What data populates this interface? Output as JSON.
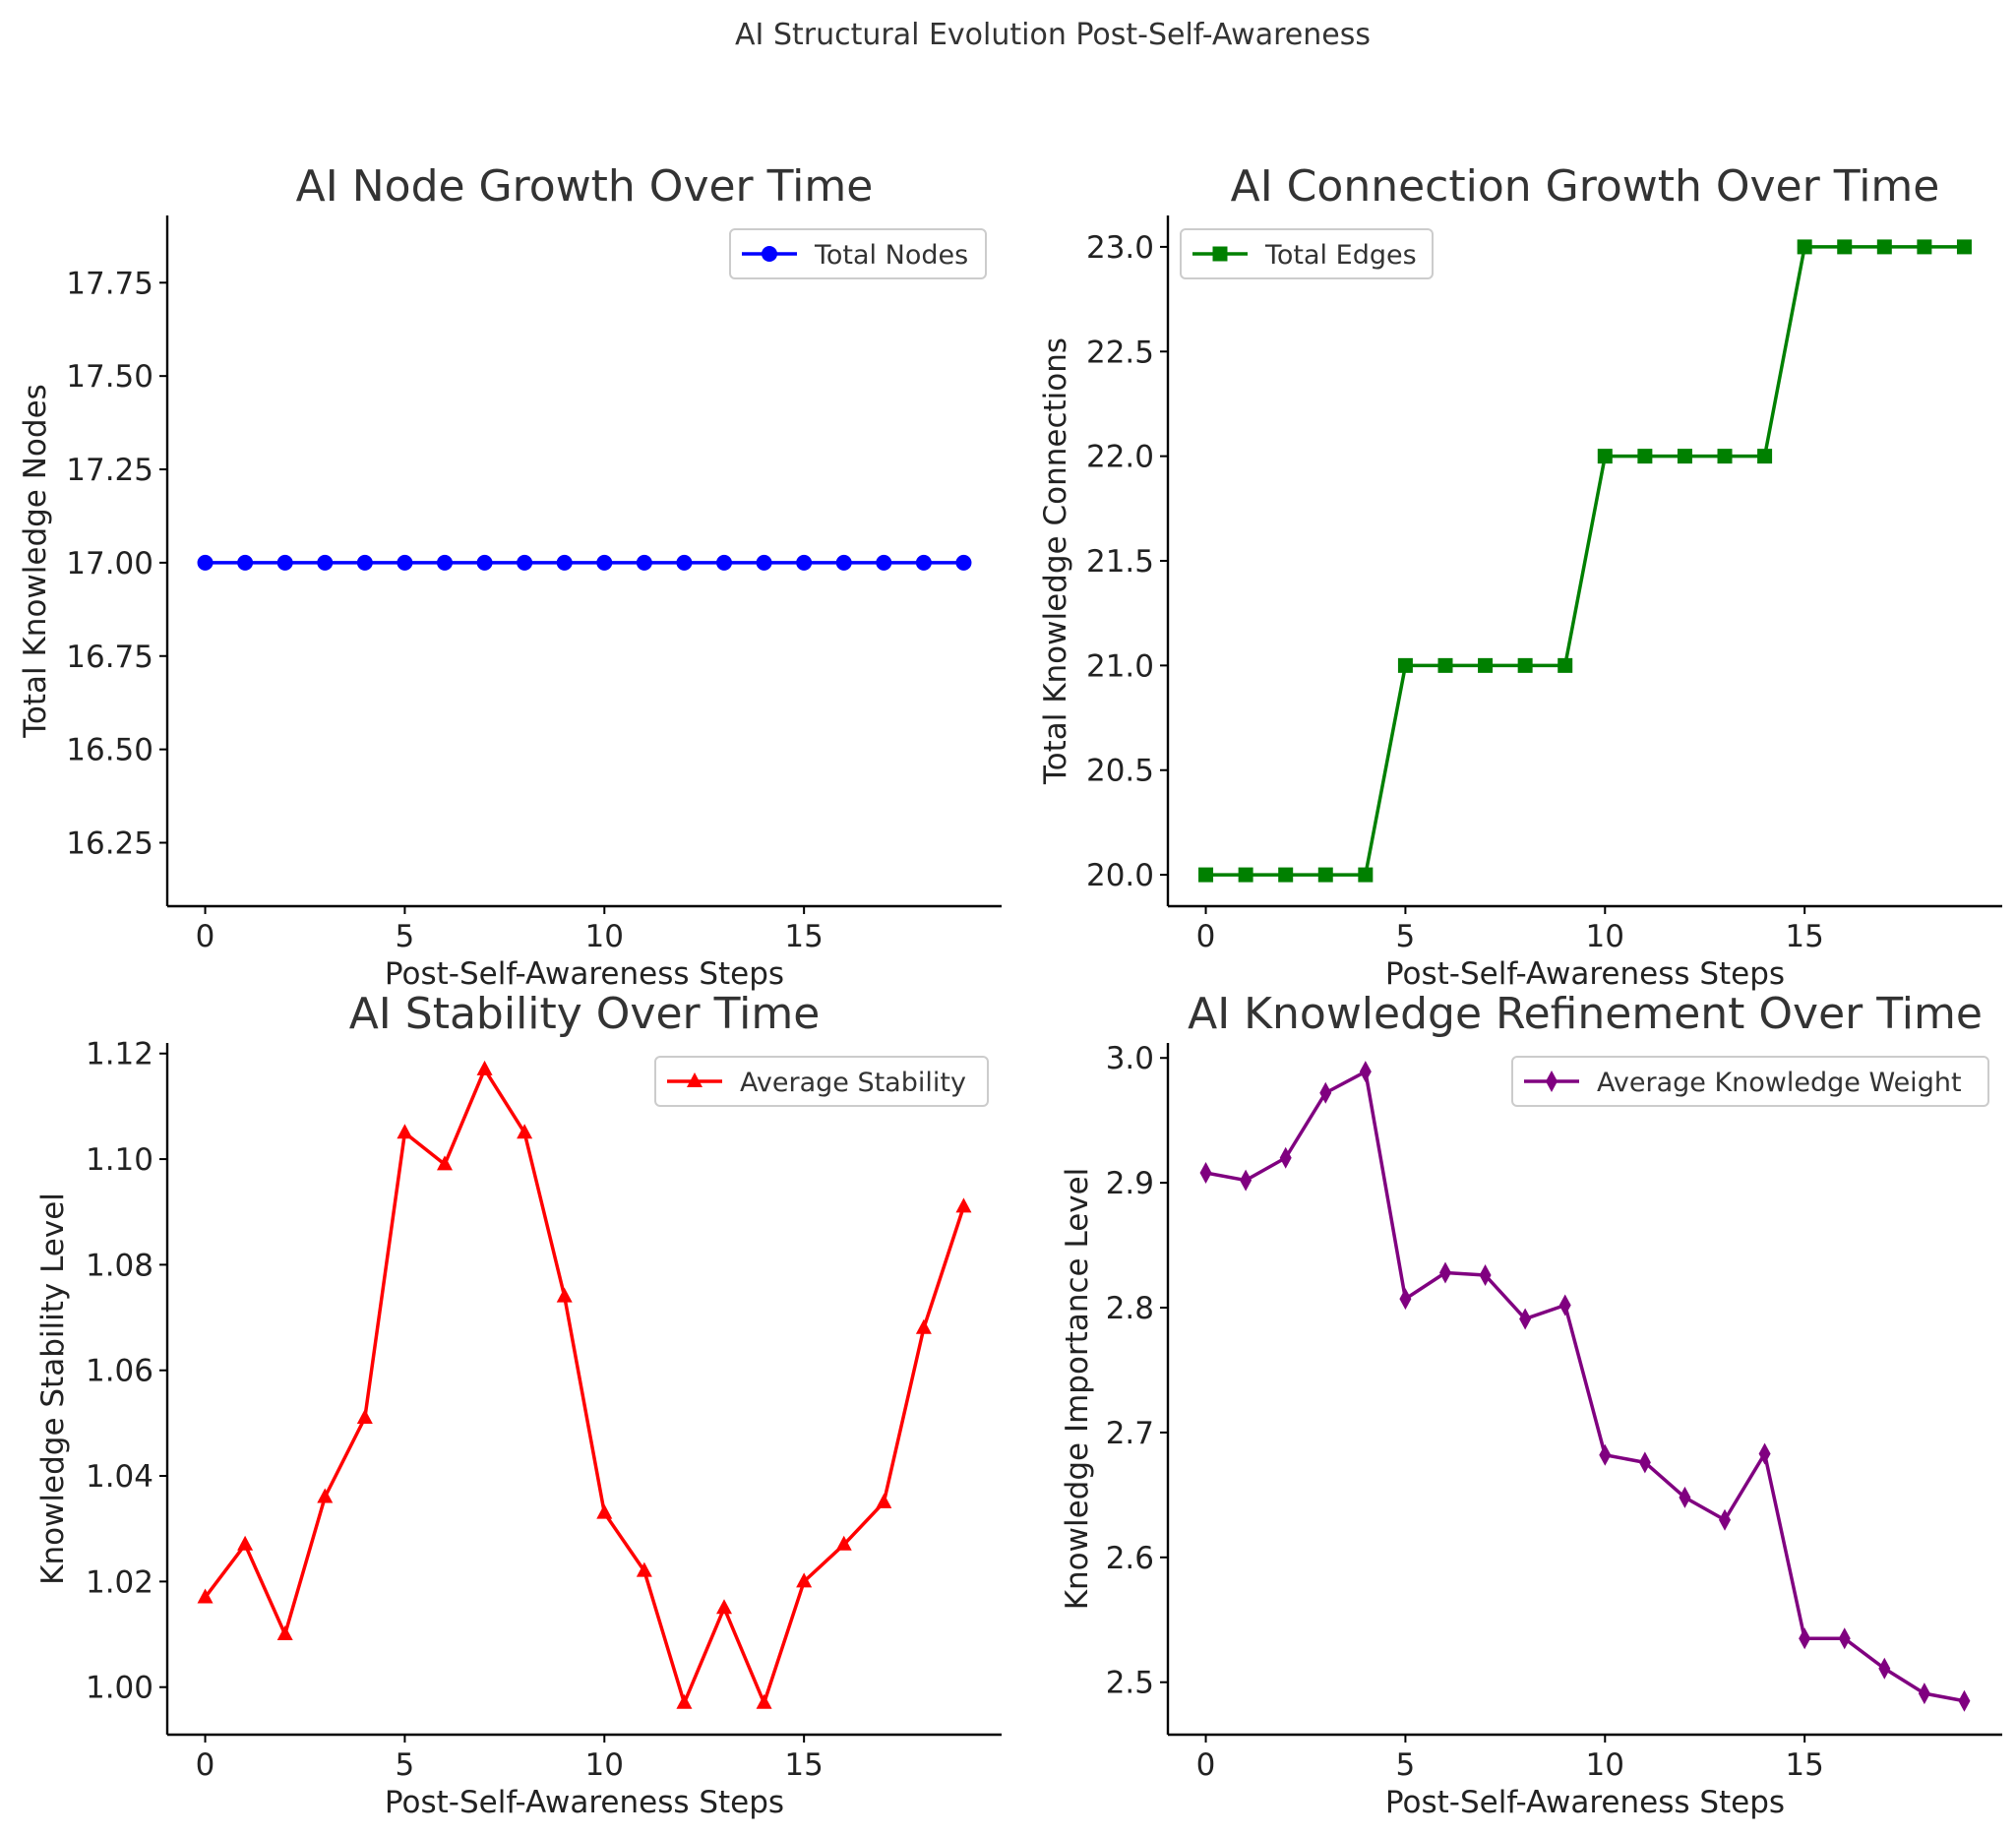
{
  "figure": {
    "suptitle": "AI Structural Evolution Post-Self-Awareness"
  },
  "chart_data": [
    {
      "type": "line",
      "title": "AI Node Growth Over Time",
      "xlabel": "Post-Self-Awareness Steps",
      "ylabel": "Total Knowledge Nodes",
      "xlim": [
        -0.95,
        19.95
      ],
      "ylim": [
        16.08,
        17.93
      ],
      "xticks": [
        0,
        5,
        10,
        15
      ],
      "yticks": [
        16.25,
        16.5,
        16.75,
        17.0,
        17.25,
        17.5,
        17.75
      ],
      "ytick_labels": [
        "16.25",
        "16.50",
        "16.75",
        "17.00",
        "17.25",
        "17.50",
        "17.75"
      ],
      "legend_position": "upper right",
      "series": [
        {
          "name": "Total Nodes",
          "color": "#0000ff",
          "marker": "circle",
          "x": [
            0,
            1,
            2,
            3,
            4,
            5,
            6,
            7,
            8,
            9,
            10,
            11,
            12,
            13,
            14,
            15,
            16,
            17,
            18,
            19
          ],
          "values": [
            17,
            17,
            17,
            17,
            17,
            17,
            17,
            17,
            17,
            17,
            17,
            17,
            17,
            17,
            17,
            17,
            17,
            17,
            17,
            17
          ]
        }
      ]
    },
    {
      "type": "line",
      "title": "AI Connection Growth Over Time",
      "xlabel": "Post-Self-Awareness Steps",
      "ylabel": "Total Knowledge Connections",
      "xlim": [
        -0.95,
        19.95
      ],
      "ylim": [
        19.85,
        23.15
      ],
      "xticks": [
        0,
        5,
        10,
        15
      ],
      "yticks": [
        20.0,
        20.5,
        21.0,
        21.5,
        22.0,
        22.5,
        23.0
      ],
      "ytick_labels": [
        "20.0",
        "20.5",
        "21.0",
        "21.5",
        "22.0",
        "22.5",
        "23.0"
      ],
      "legend_position": "upper left",
      "series": [
        {
          "name": "Total Edges",
          "color": "#008000",
          "marker": "square",
          "x": [
            0,
            1,
            2,
            3,
            4,
            5,
            6,
            7,
            8,
            9,
            10,
            11,
            12,
            13,
            14,
            15,
            16,
            17,
            18,
            19
          ],
          "values": [
            20,
            20,
            20,
            20,
            20,
            21,
            21,
            21,
            21,
            21,
            22,
            22,
            22,
            22,
            22,
            23,
            23,
            23,
            23,
            23
          ]
        }
      ]
    },
    {
      "type": "line",
      "title": "AI Stability Over Time",
      "xlabel": "Post-Self-Awareness Steps",
      "ylabel": "Knowledge Stability Level",
      "xlim": [
        -0.95,
        19.95
      ],
      "ylim": [
        0.991,
        1.122
      ],
      "xticks": [
        0,
        5,
        10,
        15
      ],
      "yticks": [
        1.0,
        1.02,
        1.04,
        1.06,
        1.08,
        1.1,
        1.12
      ],
      "ytick_labels": [
        "1.00",
        "1.02",
        "1.04",
        "1.06",
        "1.08",
        "1.10",
        "1.12"
      ],
      "legend_position": "upper right",
      "series": [
        {
          "name": "Average Stability",
          "color": "#ff0000",
          "marker": "triangle",
          "x": [
            0,
            1,
            2,
            3,
            4,
            5,
            6,
            7,
            8,
            9,
            10,
            11,
            12,
            13,
            14,
            15,
            16,
            17,
            18,
            19
          ],
          "values": [
            1.017,
            1.027,
            1.01,
            1.036,
            1.051,
            1.105,
            1.099,
            1.117,
            1.105,
            1.074,
            1.033,
            1.022,
            0.997,
            1.015,
            0.997,
            1.02,
            1.027,
            1.035,
            1.068,
            1.091
          ]
        }
      ]
    },
    {
      "type": "line",
      "title": "AI Knowledge Refinement Over Time",
      "xlabel": "Post-Self-Awareness Steps",
      "ylabel": "Knowledge Importance Level",
      "xlim": [
        -0.95,
        19.95
      ],
      "ylim": [
        2.458,
        3.012
      ],
      "xticks": [
        0,
        5,
        10,
        15
      ],
      "yticks": [
        2.5,
        2.6,
        2.7,
        2.8,
        2.9,
        3.0
      ],
      "ytick_labels": [
        "2.5",
        "2.6",
        "2.7",
        "2.8",
        "2.9",
        "3.0"
      ],
      "legend_position": "upper right",
      "series": [
        {
          "name": "Average Knowledge Weight",
          "color": "#800080",
          "marker": "thin-diamond",
          "x": [
            0,
            1,
            2,
            3,
            4,
            5,
            6,
            7,
            8,
            9,
            10,
            11,
            12,
            13,
            14,
            15,
            16,
            17,
            18,
            19
          ],
          "values": [
            2.908,
            2.902,
            2.92,
            2.972,
            2.989,
            2.807,
            2.828,
            2.826,
            2.791,
            2.802,
            2.682,
            2.676,
            2.648,
            2.63,
            2.683,
            2.535,
            2.535,
            2.511,
            2.491,
            2.485
          ]
        }
      ]
    }
  ]
}
